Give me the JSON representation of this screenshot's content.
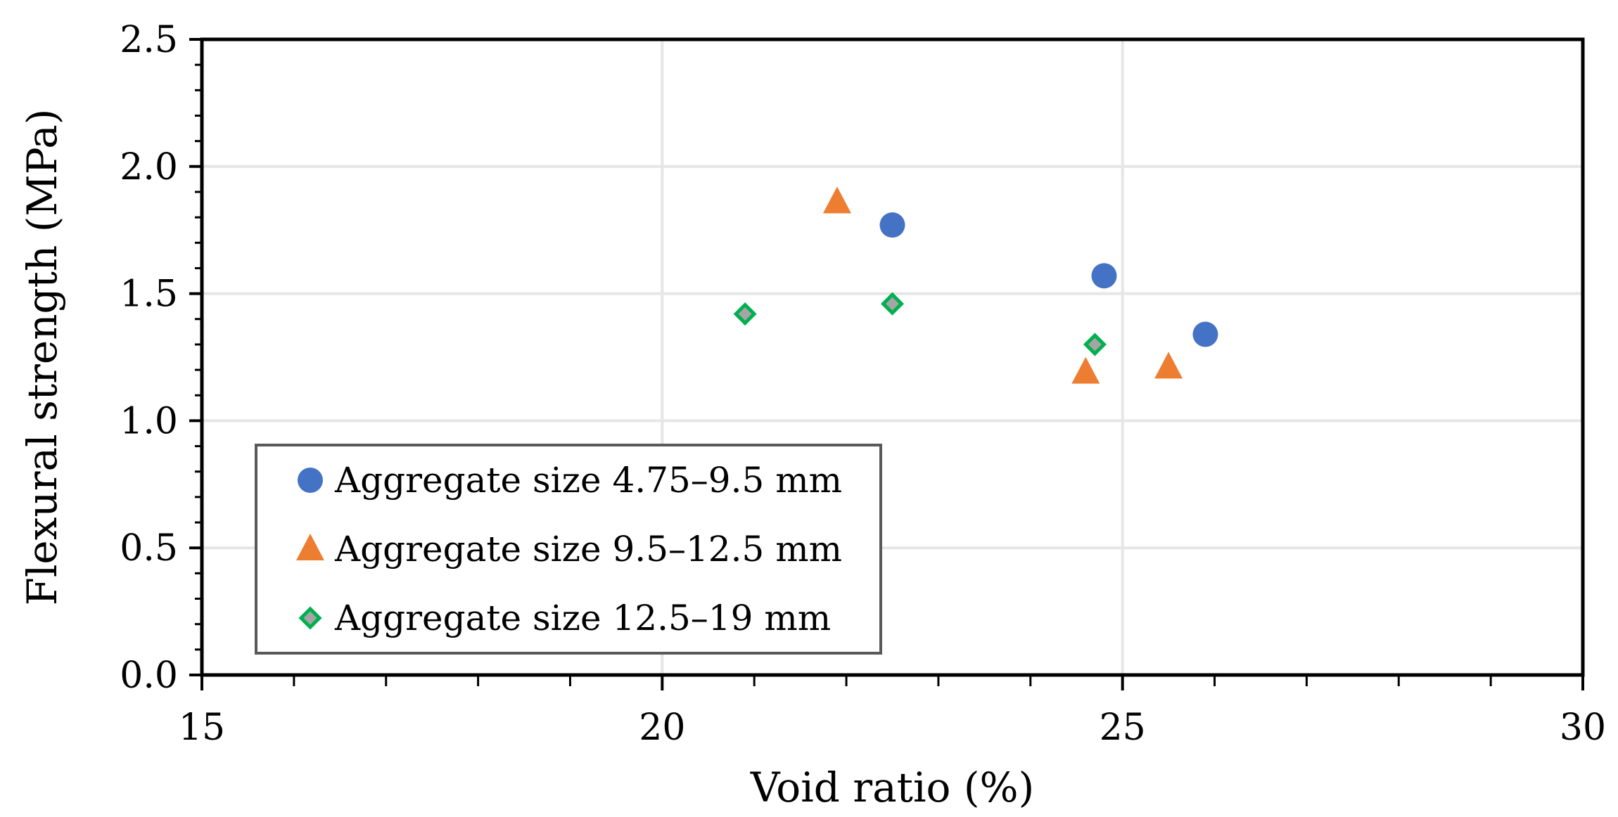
{
  "chart_data": {
    "type": "scatter",
    "title": "",
    "xlabel": "Void ratio (%)",
    "ylabel": "Flexural strength (MPa)",
    "xlim": [
      15,
      30
    ],
    "ylim": [
      0.0,
      2.5
    ],
    "x_ticks": [
      "15",
      "20",
      "25",
      "30"
    ],
    "y_ticks": [
      "0.0",
      "0.5",
      "1.0",
      "1.5",
      "2.0",
      "2.5"
    ],
    "grid": true,
    "legend_position": "bottom-left",
    "series": [
      {
        "name": "Aggregate size 4.75–9.5 mm",
        "marker": "circle",
        "color": "#4472C4",
        "points": [
          [
            22.5,
            1.77
          ],
          [
            24.8,
            1.57
          ],
          [
            25.9,
            1.34
          ]
        ]
      },
      {
        "name": "Aggregate size 9.5–12.5 mm",
        "marker": "triangle",
        "color": "#ED7D31",
        "points": [
          [
            21.9,
            1.86
          ],
          [
            24.6,
            1.19
          ],
          [
            25.5,
            1.21
          ]
        ]
      },
      {
        "name": "Aggregate size 12.5–19 mm",
        "marker": "diamond",
        "color": "#00B050",
        "fill": "#A5A5A5",
        "points": [
          [
            20.9,
            1.42
          ],
          [
            22.5,
            1.46
          ],
          [
            24.7,
            1.3
          ]
        ]
      }
    ]
  }
}
